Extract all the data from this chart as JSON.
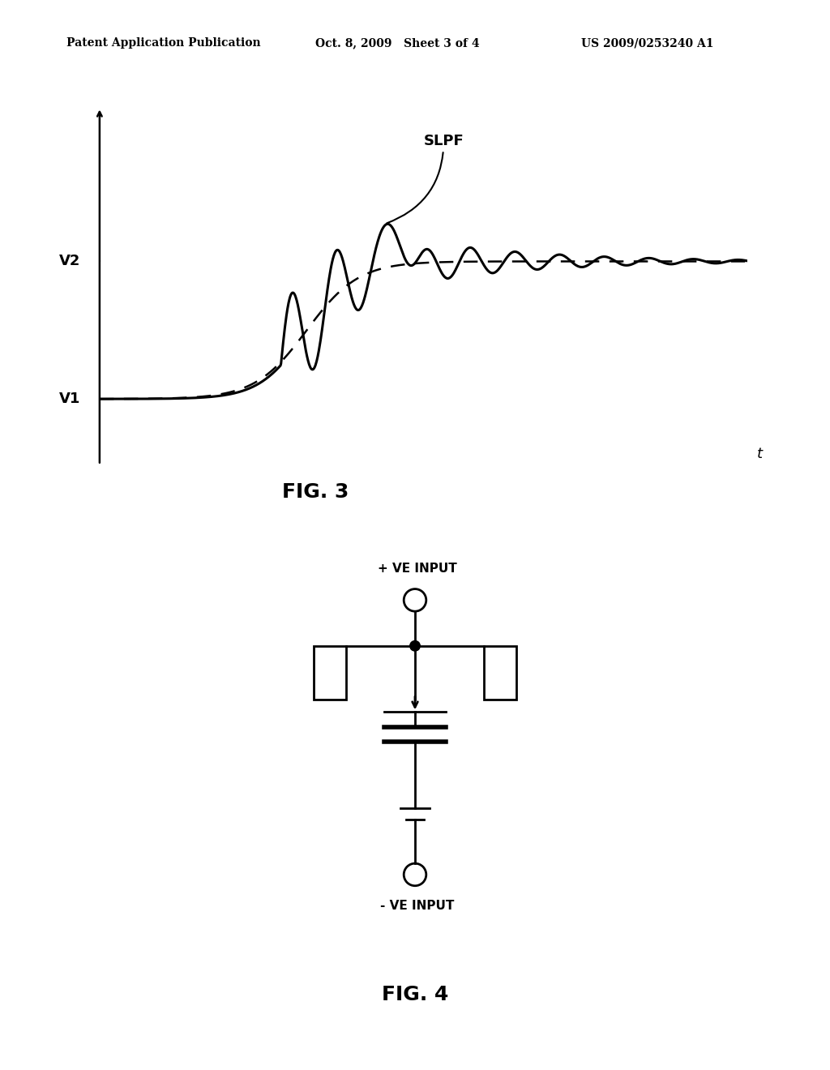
{
  "header_left": "Patent Application Publication",
  "header_mid": "Oct. 8, 2009   Sheet 3 of 4",
  "header_right": "US 2009/0253240 A1",
  "fig3_label": "FIG. 3",
  "fig4_label": "FIG. 4",
  "slpf_label": "SLPF",
  "v1_label": "V1",
  "v2_label": "V2",
  "t_label": "t",
  "plus_ve_input": "+ VE INPUT",
  "minus_ve_input": "- VE INPUT",
  "bg_color": "#ffffff",
  "line_color": "#000000"
}
